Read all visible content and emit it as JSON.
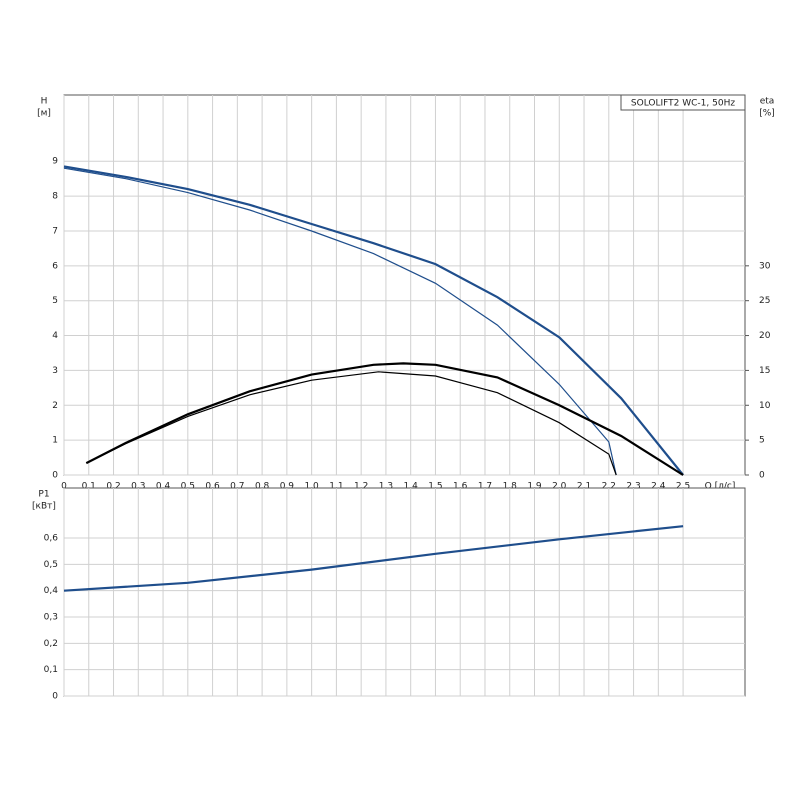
{
  "chart_data": [
    {
      "type": "line",
      "title": "SOLOLIFT2 WC-1, 50Hz",
      "ylabel": "H",
      "yunit": "[м]",
      "y2label": "eta",
      "y2unit": "[%]",
      "xlabel": "Q [л/с]",
      "grid": true,
      "xlim": [
        0,
        2.75
      ],
      "xticks": [
        0,
        {
          "value": 0.1,
          "label": "0,1"
        },
        {
          "value": 0.2,
          "label": "0,2"
        },
        {
          "value": 0.3,
          "label": "0,3"
        },
        {
          "value": 0.4,
          "label": "0,4"
        },
        {
          "value": 0.5,
          "label": "0,5"
        },
        {
          "value": 0.6,
          "label": "0,6"
        },
        {
          "value": 0.7,
          "label": "0,7"
        },
        {
          "value": 0.8,
          "label": "0,8"
        },
        {
          "value": 0.9,
          "label": "0,9"
        },
        {
          "value": 1.0,
          "label": "1,0"
        },
        {
          "value": 1.1,
          "label": "1,1"
        },
        {
          "value": 1.2,
          "label": "1,2"
        },
        {
          "value": 1.3,
          "label": "1,3"
        },
        {
          "value": 1.4,
          "label": "1,4"
        },
        {
          "value": 1.5,
          "label": "1,5"
        },
        {
          "value": 1.6,
          "label": "1,6"
        },
        {
          "value": 1.7,
          "label": "1,7"
        },
        {
          "value": 1.8,
          "label": "1,8"
        },
        {
          "value": 1.9,
          "label": "1,9"
        },
        {
          "value": 2.0,
          "label": "2,0"
        },
        {
          "value": 2.1,
          "label": "2,1"
        },
        {
          "value": 2.2,
          "label": "2,2"
        },
        {
          "value": 2.3,
          "label": "2,3"
        },
        {
          "value": 2.4,
          "label": "2,4"
        },
        {
          "value": 2.5,
          "label": "2,5"
        }
      ],
      "ylim": [
        0,
        10.9
      ],
      "yticks": [
        0,
        1,
        2,
        3,
        4,
        5,
        6,
        7,
        8,
        9
      ],
      "y2lim": [
        0,
        54.5
      ],
      "y2ticks": [
        0,
        5,
        10,
        15,
        20,
        25,
        30
      ],
      "series": [
        {
          "color": "#1f4e8c",
          "x": [
            0,
            0.25,
            0.5,
            0.75,
            1.0,
            1.25,
            1.5,
            1.75,
            2.0,
            2.25,
            2.5
          ],
          "values": [
            8.85,
            8.55,
            8.2,
            7.75,
            7.2,
            6.65,
            6.05,
            5.1,
            3.95,
            2.2,
            0
          ]
        },
        {
          "color": "#1f4e8c",
          "x": [
            0,
            0.25,
            0.5,
            0.75,
            1.0,
            1.25,
            1.5,
            1.75,
            2.0,
            2.2,
            2.23
          ],
          "values": [
            8.8,
            8.5,
            8.1,
            7.6,
            7.0,
            6.35,
            5.5,
            4.3,
            2.6,
            0.95,
            0
          ]
        },
        {
          "color": "#000000",
          "axis": "y2",
          "x": [
            0.09,
            0.25,
            0.5,
            0.75,
            1.0,
            1.25,
            1.37,
            1.5,
            1.75,
            2.0,
            2.25,
            2.5
          ],
          "values": [
            1.7,
            4.6,
            8.7,
            12.0,
            14.4,
            15.8,
            16.0,
            15.8,
            14.0,
            10.0,
            5.6,
            0
          ]
        },
        {
          "color": "#000000",
          "axis": "y2",
          "x": [
            0.09,
            0.25,
            0.5,
            0.75,
            1.0,
            1.27,
            1.5,
            1.75,
            2.0,
            2.2,
            2.23
          ],
          "values": [
            1.7,
            4.5,
            8.4,
            11.5,
            13.6,
            14.8,
            14.2,
            11.8,
            7.5,
            3.0,
            0
          ]
        }
      ]
    },
    {
      "type": "line",
      "ylabel": "P1",
      "yunit": "[кВт]",
      "grid": true,
      "xlim": [
        0,
        2.75
      ],
      "ylim": [
        0,
        0.79
      ],
      "yticks": [
        0,
        {
          "value": 0.1,
          "label": "0,1"
        },
        {
          "value": 0.2,
          "label": "0,2"
        },
        {
          "value": 0.3,
          "label": "0,3"
        },
        {
          "value": 0.4,
          "label": "0,4"
        },
        {
          "value": 0.5,
          "label": "0,5"
        },
        {
          "value": 0.6,
          "label": "0,6"
        }
      ],
      "series": [
        {
          "color": "#1f4e8c",
          "x": [
            0,
            0.5,
            1.0,
            1.5,
            2.0,
            2.5
          ],
          "values": [
            0.4,
            0.43,
            0.48,
            0.54,
            0.595,
            0.645
          ]
        }
      ]
    }
  ]
}
